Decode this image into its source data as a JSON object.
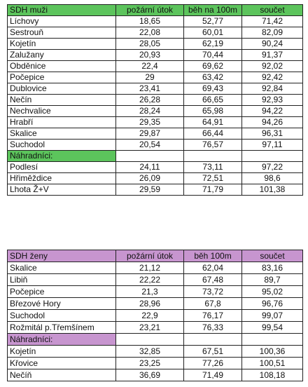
{
  "tables": [
    {
      "header": [
        "SDH muži",
        "požární útok",
        "běh na 100m",
        "součet"
      ],
      "rows": [
        [
          "Líchovy",
          "18,65",
          "52,77",
          "71,42"
        ],
        [
          "Sestrouň",
          "22,08",
          "60,01",
          "82,09"
        ],
        [
          "Kojetín",
          "28,05",
          "62,19",
          "90,24"
        ],
        [
          "Zalužany",
          "20,93",
          "70,44",
          "91,37"
        ],
        [
          "Obděnice",
          "22,4",
          "69,62",
          "92,02"
        ],
        [
          "Počepice",
          "29",
          "63,42",
          "92,42"
        ],
        [
          "Dublovice",
          "23,41",
          "69,43",
          "92,84"
        ],
        [
          "Nečín",
          "26,28",
          "66,65",
          "92,93"
        ],
        [
          "Nechvalice",
          "28,24",
          "65,98",
          "94,22"
        ],
        [
          "Hrabří",
          "29,35",
          "64,91",
          "94,26"
        ],
        [
          "Skalice",
          "29,87",
          "66,44",
          "96,31"
        ],
        [
          "Suchodol",
          "20,54",
          "76,57",
          "97,11"
        ]
      ],
      "substitutes_label": "Náhradníci:",
      "substitute_rows": [
        [
          "Podlesí",
          "24,11",
          "73,11",
          "97,22"
        ],
        [
          "Hřiměždice",
          "26,09",
          "72,51",
          "98,6"
        ],
        [
          "Lhota Ž+V",
          "29,59",
          "71,79",
          "101,38"
        ]
      ]
    },
    {
      "header": [
        "SDH ženy",
        "požární útok",
        "běh 100m",
        "součet"
      ],
      "rows": [
        [
          "Skalice",
          "21,12",
          "62,04",
          "83,16"
        ],
        [
          "Libiň",
          "22,22",
          "67,48",
          "89,7"
        ],
        [
          "Počepice",
          "21,3",
          "73,72",
          "95,02"
        ],
        [
          "Březové Hory",
          "28,96",
          "67,8",
          "96,76"
        ],
        [
          "Suchodol",
          "22,9",
          "76,17",
          "99,07"
        ],
        [
          "Rožmitál p.Třemšínem",
          "23,21",
          "76,33",
          "99,54"
        ]
      ],
      "substitutes_label": "Náhradníci:",
      "substitute_rows": [
        [
          "Kojetín",
          "32,85",
          "67,51",
          "100,36"
        ],
        [
          "Křovice",
          "23,25",
          "77,26",
          "100,51"
        ],
        [
          "Nečíň",
          "36,69",
          "71,49",
          "108,18"
        ]
      ]
    }
  ]
}
